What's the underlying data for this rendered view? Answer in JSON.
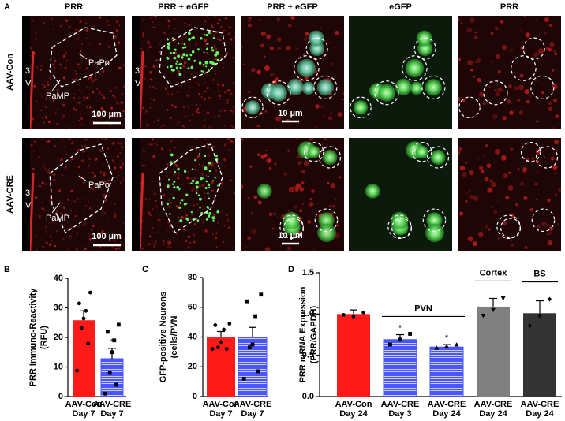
{
  "panel_a": {
    "letter": "A",
    "columns": [
      "PRR",
      "PRR + eGFP",
      "PRR + eGFP",
      "eGFP",
      "PRR"
    ],
    "rows": [
      {
        "label": "AAV-Con",
        "papo": "PaPo",
        "pamp": "PaMP",
        "ventricle": [
          "3",
          "V"
        ],
        "scale_low": "100 µm",
        "scale_high": "10 µm"
      },
      {
        "label": "AAV-CRE",
        "papo": "PaPo",
        "pamp": "PaMP",
        "ventricle": [
          "3",
          "V"
        ],
        "scale_low": "100 µm",
        "scale_high": "10 µm"
      }
    ]
  },
  "chart_data": [
    {
      "type": "bar",
      "panel": "B",
      "ylabel": [
        "PRR Immuno-Reactivity",
        "(RFU)"
      ],
      "categories": [
        [
          "AAV-Con",
          "Day 7"
        ],
        [
          "AAV-CRE",
          "Day 7"
        ]
      ],
      "values": [
        25.8,
        12.8
      ],
      "errors": [
        3.2,
        3.5
      ],
      "colors": [
        "#ff1a1a",
        "#4a55ff"
      ],
      "hatch": [
        false,
        true
      ],
      "points": [
        [
          35.2,
          31.5,
          29,
          26.4,
          23.2,
          17.9,
          8.8
        ],
        [
          24.3,
          21.9,
          19,
          15,
          8,
          4,
          1
        ]
      ],
      "markers": [
        "circle",
        "square"
      ],
      "bar_labels": [
        null,
        "*"
      ],
      "ylim": [
        0,
        40
      ],
      "yticks": [
        0,
        10,
        20,
        30,
        40
      ]
    },
    {
      "type": "bar",
      "panel": "C",
      "ylabel": [
        "GFP-positive Neurons",
        "(cells/PVN"
      ],
      "categories": [
        [
          "AAV-Con",
          "Day 7"
        ],
        [
          "AAV-CRE",
          "Day 7"
        ]
      ],
      "values": [
        39.7,
        40
      ],
      "errors": [
        4,
        6.5
      ],
      "colors": [
        "#ff1a1a",
        "#4a55ff"
      ],
      "hatch": [
        false,
        true
      ],
      "points": [
        [
          49,
          48,
          45,
          36.6,
          33,
          32,
          32
        ],
        [
          68.5,
          64,
          54,
          35,
          33,
          17,
          12
        ]
      ],
      "markers": [
        "circle",
        "square"
      ],
      "bar_labels": [
        null,
        null
      ],
      "ylim": [
        0,
        80
      ],
      "yticks": [
        0,
        20,
        40,
        60,
        80
      ]
    },
    {
      "type": "bar",
      "panel": "D",
      "ylabel": [
        "PRR mRNA Expression",
        "(PRR/GAPDH)"
      ],
      "categories": [
        [
          "AAV-Con",
          "Day 24"
        ],
        [
          "AAV-CRE",
          "Day 3"
        ],
        [
          "AAV-CRE",
          "Day 24"
        ],
        [
          "AAV-CRE",
          "Day 24"
        ],
        [
          "AAV-CRE",
          "Day 24"
        ]
      ],
      "values": [
        1.0,
        0.69,
        0.6,
        1.09,
        1.01
      ],
      "errors": [
        0.05,
        0.06,
        0.03,
        0.1,
        0.15
      ],
      "colors": [
        "#ff1a1a",
        "#4a55ff",
        "#4a55ff",
        "#808080",
        "#333333"
      ],
      "hatch": [
        false,
        true,
        true,
        false,
        false
      ],
      "points": [
        [
          1.02,
          0.97,
          0.99
        ],
        [
          0.76,
          0.69,
          0.63
        ],
        [
          0.63,
          0.61,
          0.59
        ],
        [
          1.19,
          1.05,
          0.98
        ],
        [
          1.18,
          0.98,
          0.86
        ]
      ],
      "markers": [
        "circle",
        "square",
        "triangle",
        "triangle-down",
        "diamond"
      ],
      "bar_labels": [
        null,
        "*",
        "*",
        null,
        null
      ],
      "groups": [
        {
          "label": "PVN",
          "from": 1,
          "to": 2
        },
        {
          "label": "Cortex",
          "from": 3,
          "to": 3
        },
        {
          "label": "BS",
          "from": 4,
          "to": 4
        }
      ],
      "ylim": [
        0,
        1.5
      ],
      "yticks": [
        {
          "value": 0,
          "label": "0.0"
        },
        0.5,
        {
          "value": 1,
          "label": "1.0"
        },
        1.5
      ]
    }
  ]
}
